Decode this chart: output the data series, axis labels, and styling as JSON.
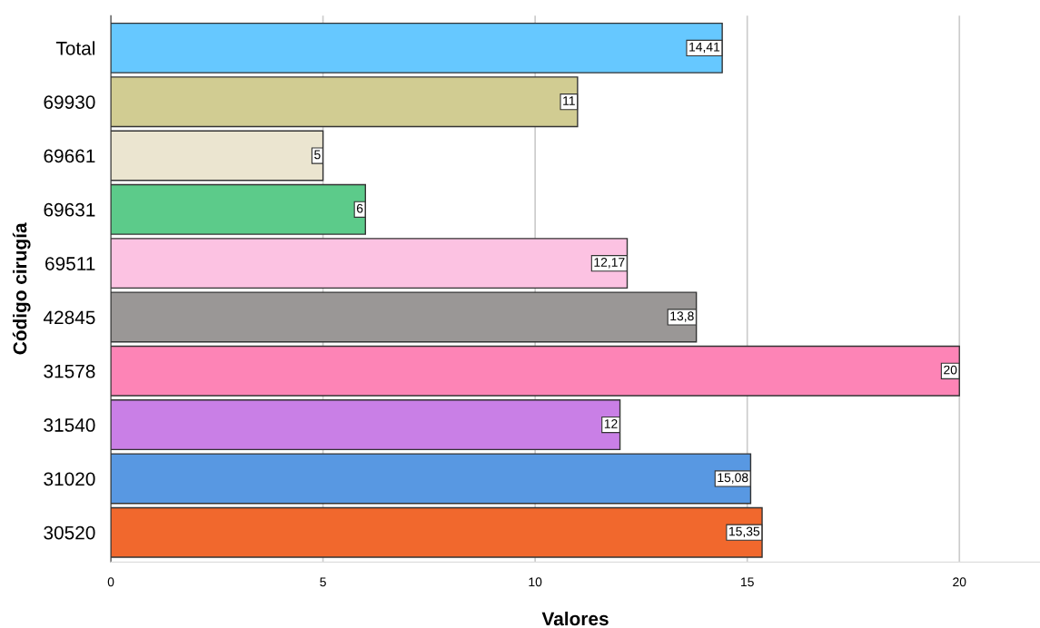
{
  "chart_data": {
    "type": "bar",
    "orientation": "horizontal",
    "xlabel": "Valores",
    "ylabel": "Código cirugía",
    "categories": [
      "Total",
      "69930",
      "69661",
      "69631",
      "69511",
      "42845",
      "31578",
      "31540",
      "31020",
      "30520"
    ],
    "values": [
      14.41,
      11,
      5,
      6,
      12.17,
      13.8,
      20,
      12,
      15.08,
      15.35
    ],
    "value_labels": [
      "14,41",
      "11",
      "5",
      "6",
      "12,17",
      "13,8",
      "20",
      "12",
      "15,08",
      "15,35"
    ],
    "colors": [
      "#66c8ff",
      "#d1cc92",
      "#ebe5d0",
      "#5ccb8a",
      "#fcc2e2",
      "#9a9796",
      "#fd84b6",
      "#c97fe6",
      "#5898e2",
      "#f1682d"
    ],
    "xlim": [
      0,
      21.9
    ],
    "xticks": [
      0,
      5,
      10,
      15,
      20
    ],
    "grid": "x",
    "legend": false
  }
}
